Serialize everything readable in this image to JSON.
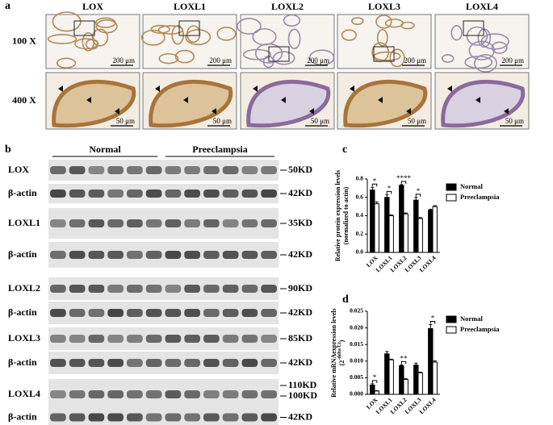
{
  "panel_a": {
    "label": "a",
    "columns": [
      "LOX",
      "LOXL1",
      "LOXL2",
      "LOXL3",
      "LOXL4"
    ],
    "rows": [
      "100 X",
      "400 X"
    ],
    "scale_labels": [
      "200 μm",
      "50 μm"
    ]
  },
  "panel_b": {
    "label": "b",
    "groups": [
      "Normal",
      "Preeclampsia"
    ],
    "blots": [
      {
        "name": "LOX",
        "size": "50KD"
      },
      {
        "name": "β-actin",
        "size": "42KD"
      },
      {
        "name": "LOXL1",
        "size": "35KD"
      },
      {
        "name": "β-actin",
        "size": "42KD"
      },
      {
        "name": "LOXL2",
        "size": "90KD"
      },
      {
        "name": "β-actin",
        "size": "42KD"
      },
      {
        "name": "LOXL3",
        "size": "85KD"
      },
      {
        "name": "β-actin",
        "size": "42KD"
      },
      {
        "name": "LOXL4",
        "size": "110KD",
        "size2": "100KD"
      },
      {
        "name": "β-actin",
        "size": "42KD"
      }
    ]
  },
  "chart_data": [
    {
      "type": "bar",
      "panel_label": "c",
      "y_label": [
        "Relative protein expression levels",
        "(normalized to actin)"
      ],
      "categories": [
        "LOX",
        "LOXL1",
        "LOXL2",
        "LOXL3",
        "LOXL4"
      ],
      "series": [
        {
          "name": "Normal",
          "color": "#000000",
          "values": [
            0.68,
            0.6,
            0.73,
            0.57,
            0.46
          ],
          "errors": [
            0.03,
            0.03,
            0.01,
            0.03,
            0.01
          ]
        },
        {
          "name": "Preeclampsia",
          "color": "#ffffff",
          "values": [
            0.53,
            0.4,
            0.42,
            0.37,
            0.5
          ],
          "errors": [
            0.02,
            0.01,
            0.01,
            0.01,
            0.01
          ]
        }
      ],
      "significance": [
        "*",
        "*",
        "****",
        "*",
        null
      ],
      "ylim": [
        0,
        0.8
      ],
      "yticks": [
        {
          "value": 0,
          "label": "0.0"
        },
        0.2,
        0.4,
        0.6,
        0.8
      ]
    },
    {
      "type": "bar",
      "panel_label": "d",
      "y_label": [
        "Relative mRNAexpression levels",
        "(2",
        "-delta Ct",
        ")"
      ],
      "categories": [
        "LOX",
        "LOXL1",
        "LOXL2",
        "LOXL3",
        "LOXL4"
      ],
      "series": [
        {
          "name": "Normal",
          "color": "#000000",
          "values": [
            0.0028,
            0.0122,
            0.0086,
            0.0088,
            0.0198
          ],
          "errors": [
            0.0004,
            0.0007,
            0.0003,
            0.0006,
            0.0012
          ]
        },
        {
          "name": "Preeclampsia",
          "color": "#ffffff",
          "values": [
            0.001,
            0.0104,
            0.0045,
            0.0065,
            0.0097
          ],
          "errors": [
            0.0001,
            0.0002,
            0.0002,
            0.0002,
            0.0004
          ]
        }
      ],
      "significance": [
        "*",
        null,
        "**",
        null,
        "*"
      ],
      "ylim": [
        0,
        0.025
      ],
      "yticks": [
        {
          "value": 0,
          "label": "0.000"
        },
        {
          "value": 0.005,
          "label": "0.005"
        },
        {
          "value": 0.01,
          "label": "0.010"
        },
        {
          "value": 0.015,
          "label": "0.015"
        },
        {
          "value": 0.02,
          "label": "0.020"
        },
        {
          "value": 0.025,
          "label": "0.025"
        }
      ]
    }
  ]
}
